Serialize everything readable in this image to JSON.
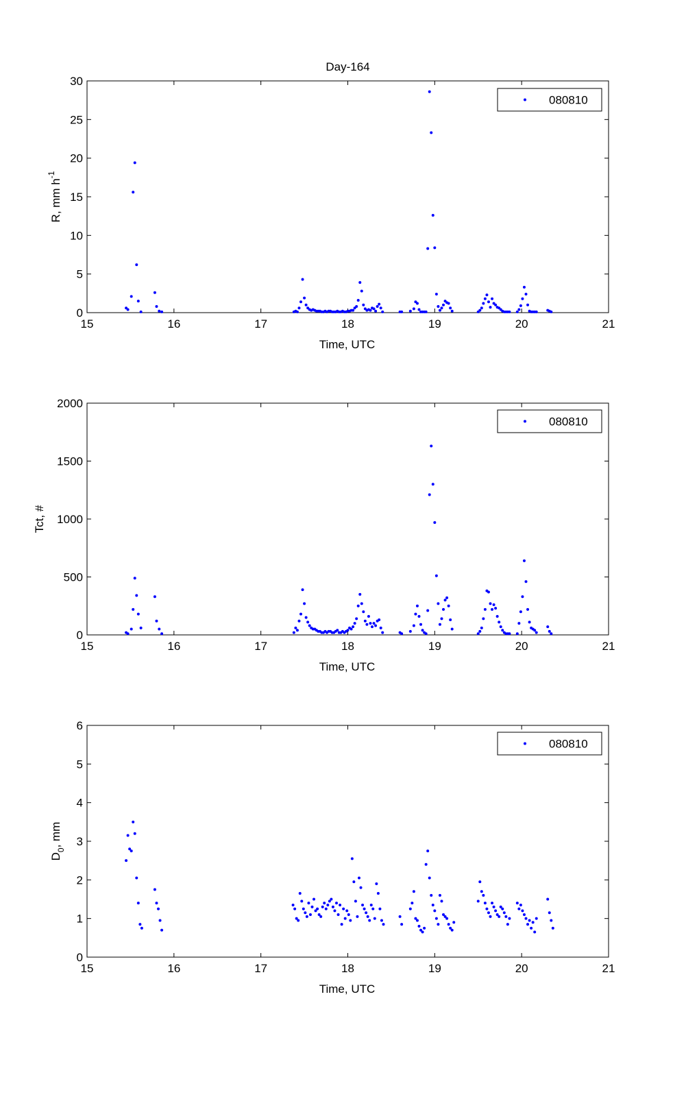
{
  "chart_data": [
    {
      "type": "scatter",
      "title": "Day-164",
      "xlabel": "Time, UTC",
      "ylabel": "R, mm h",
      "ylabel_superscript": "-1",
      "xlim": [
        15,
        21
      ],
      "ylim": [
        0,
        30
      ],
      "xticks": [
        "15",
        "16",
        "17",
        "18",
        "19",
        "20",
        "21"
      ],
      "yticks": [
        "0",
        "5",
        "10",
        "15",
        "20",
        "25",
        "30"
      ],
      "legend_position": "top-right",
      "grid": false,
      "series": [
        {
          "name": "080810",
          "color": "#0000ff",
          "x": [
            15.45,
            15.47,
            15.51,
            15.53,
            15.55,
            15.57,
            15.59,
            15.62,
            15.78,
            15.8,
            15.83,
            15.86,
            17.38,
            17.4,
            17.42,
            17.44,
            17.46,
            17.48,
            17.5,
            17.52,
            17.54,
            17.56,
            17.58,
            17.6,
            17.62,
            17.64,
            17.66,
            17.68,
            17.7,
            17.72,
            17.74,
            17.76,
            17.78,
            17.8,
            17.82,
            17.84,
            17.86,
            17.88,
            17.9,
            17.92,
            17.94,
            17.96,
            17.98,
            18.0,
            18.02,
            18.04,
            18.06,
            18.08,
            18.1,
            18.12,
            18.14,
            18.16,
            18.18,
            18.2,
            18.22,
            18.24,
            18.26,
            18.28,
            18.3,
            18.32,
            18.34,
            18.36,
            18.38,
            18.4,
            18.6,
            18.62,
            18.72,
            18.76,
            18.78,
            18.8,
            18.82,
            18.84,
            18.86,
            18.88,
            18.9,
            18.92,
            18.94,
            18.96,
            18.98,
            19.0,
            19.02,
            19.04,
            19.06,
            19.08,
            19.1,
            19.12,
            19.14,
            19.16,
            19.18,
            19.2,
            19.5,
            19.52,
            19.54,
            19.56,
            19.58,
            19.6,
            19.62,
            19.64,
            19.66,
            19.68,
            19.7,
            19.72,
            19.74,
            19.76,
            19.78,
            19.8,
            19.82,
            19.84,
            19.86,
            19.95,
            19.97,
            19.99,
            20.01,
            20.03,
            20.05,
            20.07,
            20.09,
            20.11,
            20.13,
            20.15,
            20.17,
            20.3,
            20.32,
            20.34
          ],
          "y": [
            0.6,
            0.4,
            2.1,
            15.6,
            19.4,
            6.2,
            1.5,
            0.1,
            2.6,
            0.8,
            0.2,
            0.1,
            0.1,
            0.2,
            0.1,
            0.6,
            1.4,
            4.3,
            1.9,
            1.0,
            0.6,
            0.4,
            0.3,
            0.4,
            0.3,
            0.2,
            0.2,
            0.2,
            0.1,
            0.1,
            0.2,
            0.1,
            0.2,
            0.2,
            0.1,
            0.1,
            0.1,
            0.2,
            0.1,
            0.1,
            0.2,
            0.1,
            0.1,
            0.2,
            0.2,
            0.3,
            0.3,
            0.6,
            0.8,
            1.6,
            3.9,
            2.8,
            1.0,
            0.5,
            0.3,
            0.4,
            0.3,
            0.6,
            0.5,
            0.2,
            0.8,
            1.1,
            0.6,
            0.1,
            0.1,
            0.1,
            0.2,
            0.5,
            1.4,
            1.2,
            0.4,
            0.1,
            0.1,
            0.1,
            0.1,
            8.3,
            28.6,
            23.3,
            12.6,
            8.4,
            2.4,
            0.8,
            0.3,
            0.6,
            1.0,
            1.5,
            1.3,
            1.2,
            0.6,
            0.2,
            0.1,
            0.3,
            0.6,
            1.2,
            1.8,
            2.3,
            1.4,
            0.7,
            1.8,
            1.2,
            1.0,
            0.7,
            0.6,
            0.4,
            0.2,
            0.1,
            0.1,
            0.1,
            0.1,
            0.1,
            0.4,
            0.9,
            1.8,
            3.3,
            2.4,
            1.0,
            0.2,
            0.1,
            0.1,
            0.1,
            0.1,
            0.3,
            0.2,
            0.1
          ]
        }
      ]
    },
    {
      "type": "scatter",
      "title": "",
      "xlabel": "Time, UTC",
      "ylabel": "Tct, #",
      "xlim": [
        15,
        21
      ],
      "ylim": [
        0,
        2000
      ],
      "xticks": [
        "15",
        "16",
        "17",
        "18",
        "19",
        "20",
        "21"
      ],
      "yticks": [
        "0",
        "500",
        "1000",
        "1500",
        "2000"
      ],
      "legend_position": "top-right",
      "grid": false,
      "series": [
        {
          "name": "080810",
          "color": "#0000ff",
          "x": [
            15.45,
            15.47,
            15.51,
            15.53,
            15.55,
            15.57,
            15.59,
            15.62,
            15.78,
            15.8,
            15.83,
            15.86,
            17.38,
            17.4,
            17.42,
            17.44,
            17.46,
            17.48,
            17.5,
            17.52,
            17.54,
            17.56,
            17.58,
            17.6,
            17.62,
            17.64,
            17.66,
            17.68,
            17.7,
            17.72,
            17.74,
            17.76,
            17.78,
            17.8,
            17.82,
            17.84,
            17.86,
            17.88,
            17.9,
            17.92,
            17.94,
            17.96,
            17.98,
            18.0,
            18.02,
            18.04,
            18.06,
            18.08,
            18.1,
            18.12,
            18.14,
            18.16,
            18.18,
            18.2,
            18.22,
            18.24,
            18.26,
            18.28,
            18.3,
            18.32,
            18.34,
            18.36,
            18.38,
            18.4,
            18.6,
            18.62,
            18.72,
            18.76,
            18.78,
            18.8,
            18.82,
            18.84,
            18.86,
            18.88,
            18.9,
            18.92,
            18.94,
            18.96,
            18.98,
            19.0,
            19.02,
            19.04,
            19.06,
            19.08,
            19.1,
            19.12,
            19.14,
            19.16,
            19.18,
            19.2,
            19.5,
            19.52,
            19.54,
            19.56,
            19.58,
            19.6,
            19.62,
            19.64,
            19.66,
            19.68,
            19.7,
            19.72,
            19.74,
            19.76,
            19.78,
            19.8,
            19.82,
            19.84,
            19.86,
            19.95,
            19.97,
            19.99,
            20.01,
            20.03,
            20.05,
            20.07,
            20.09,
            20.11,
            20.13,
            20.15,
            20.17,
            20.3,
            20.32,
            20.34
          ],
          "y": [
            20,
            10,
            50,
            220,
            490,
            340,
            180,
            60,
            330,
            120,
            50,
            10,
            20,
            60,
            40,
            120,
            180,
            390,
            270,
            150,
            110,
            80,
            60,
            50,
            50,
            40,
            30,
            30,
            20,
            20,
            30,
            20,
            30,
            30,
            20,
            20,
            30,
            40,
            20,
            20,
            30,
            20,
            30,
            40,
            60,
            50,
            70,
            100,
            140,
            250,
            350,
            270,
            200,
            120,
            90,
            160,
            100,
            70,
            100,
            80,
            120,
            130,
            60,
            20,
            20,
            10,
            30,
            80,
            180,
            250,
            160,
            90,
            40,
            20,
            10,
            210,
            1210,
            1630,
            1300,
            970,
            510,
            270,
            90,
            140,
            220,
            300,
            320,
            250,
            130,
            50,
            10,
            30,
            60,
            140,
            220,
            380,
            370,
            270,
            220,
            260,
            230,
            160,
            110,
            70,
            40,
            20,
            10,
            10,
            10,
            10,
            100,
            200,
            330,
            640,
            460,
            220,
            110,
            60,
            50,
            40,
            20,
            70,
            30,
            10
          ]
        }
      ]
    },
    {
      "type": "scatter",
      "title": "",
      "xlabel": "Time, UTC",
      "ylabel": "D",
      "ylabel_subscript": "0",
      "ylabel_suffix": ", mm",
      "xlim": [
        15,
        21
      ],
      "ylim": [
        0,
        6
      ],
      "xticks": [
        "15",
        "16",
        "17",
        "18",
        "19",
        "20",
        "21"
      ],
      "yticks": [
        "0",
        "1",
        "2",
        "3",
        "4",
        "5",
        "6"
      ],
      "legend_position": "top-right",
      "grid": false,
      "series": [
        {
          "name": "080810",
          "color": "#0000ff",
          "x": [
            15.45,
            15.47,
            15.49,
            15.51,
            15.53,
            15.55,
            15.57,
            15.59,
            15.61,
            15.63,
            15.78,
            15.8,
            15.82,
            15.84,
            15.86,
            17.37,
            17.39,
            17.41,
            17.43,
            17.45,
            17.47,
            17.49,
            17.51,
            17.53,
            17.55,
            17.57,
            17.59,
            17.61,
            17.63,
            17.65,
            17.67,
            17.69,
            17.71,
            17.73,
            17.75,
            17.77,
            17.79,
            17.81,
            17.83,
            17.85,
            17.87,
            17.89,
            17.91,
            17.93,
            17.95,
            17.97,
            17.99,
            18.01,
            18.03,
            18.05,
            18.07,
            18.09,
            18.11,
            18.13,
            18.15,
            18.17,
            18.19,
            18.21,
            18.23,
            18.25,
            18.27,
            18.29,
            18.31,
            18.33,
            18.35,
            18.37,
            18.39,
            18.41,
            18.6,
            18.62,
            18.72,
            18.74,
            18.76,
            18.78,
            18.8,
            18.82,
            18.84,
            18.86,
            18.88,
            18.9,
            18.92,
            18.94,
            18.96,
            18.98,
            19.0,
            19.02,
            19.04,
            19.06,
            19.08,
            19.1,
            19.12,
            19.14,
            19.16,
            19.18,
            19.2,
            19.22,
            19.5,
            19.52,
            19.54,
            19.56,
            19.58,
            19.6,
            19.62,
            19.64,
            19.66,
            19.68,
            19.7,
            19.72,
            19.74,
            19.76,
            19.78,
            19.8,
            19.82,
            19.84,
            19.86,
            19.95,
            19.97,
            19.99,
            20.01,
            20.03,
            20.05,
            20.07,
            20.09,
            20.11,
            20.13,
            20.15,
            20.17,
            20.3,
            20.32,
            20.34,
            20.36
          ],
          "y": [
            2.5,
            3.15,
            2.8,
            2.75,
            3.5,
            3.2,
            2.05,
            1.4,
            0.85,
            0.75,
            1.75,
            1.4,
            1.25,
            0.95,
            0.7,
            1.35,
            1.25,
            1.0,
            0.95,
            1.65,
            1.45,
            1.25,
            1.15,
            1.05,
            1.4,
            1.1,
            1.3,
            1.5,
            1.2,
            1.25,
            1.1,
            1.05,
            1.3,
            1.4,
            1.25,
            1.35,
            1.45,
            1.5,
            1.3,
            1.2,
            1.4,
            1.1,
            1.35,
            0.85,
            1.25,
            1.0,
            1.2,
            1.1,
            0.95,
            2.55,
            1.95,
            1.45,
            1.05,
            2.05,
            1.8,
            1.35,
            1.25,
            1.15,
            1.05,
            0.95,
            1.35,
            1.25,
            1.0,
            1.9,
            1.65,
            1.25,
            0.95,
            0.85,
            1.05,
            0.85,
            1.25,
            1.4,
            1.7,
            1.0,
            0.95,
            0.8,
            0.7,
            0.65,
            0.75,
            2.4,
            2.75,
            2.05,
            1.6,
            1.35,
            1.2,
            1.0,
            0.85,
            1.6,
            1.45,
            1.1,
            1.05,
            1.0,
            0.85,
            0.75,
            0.7,
            0.9,
            1.45,
            1.95,
            1.7,
            1.6,
            1.4,
            1.25,
            1.15,
            1.05,
            1.4,
            1.3,
            1.2,
            1.1,
            1.05,
            1.3,
            1.25,
            1.15,
            1.05,
            0.85,
            1.0,
            1.4,
            1.25,
            1.35,
            1.2,
            1.1,
            1.0,
            0.85,
            0.95,
            0.75,
            0.9,
            0.65,
            1.0,
            1.5,
            1.15,
            0.95,
            0.75
          ]
        }
      ]
    }
  ]
}
